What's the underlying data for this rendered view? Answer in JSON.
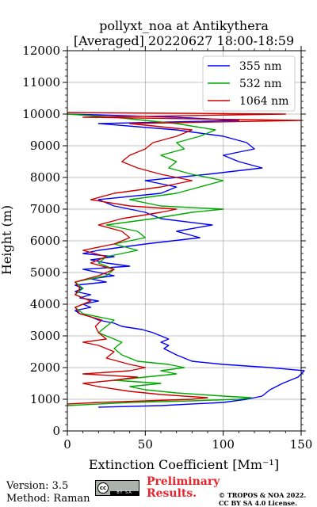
{
  "chart_data": {
    "type": "line",
    "title": "pollyxt_noa at Antikythera",
    "subtitle": "[Averaged] 20220627 18:00-18:59",
    "xlabel": "Extinction Coefficient [Mm⁻¹]",
    "ylabel": "Height (m)",
    "xlim": [
      0,
      150
    ],
    "ylim": [
      0,
      12000
    ],
    "x_ticks": [
      "0",
      "50",
      "100",
      "150"
    ],
    "y_ticks": [
      "0",
      "1000",
      "2000",
      "3000",
      "4000",
      "5000",
      "6000",
      "7000",
      "8000",
      "9000",
      "10000",
      "11000",
      "12000"
    ],
    "grid": true,
    "legend_position": "top-right",
    "series": [
      {
        "name": "355 nm",
        "color": "#0000ff",
        "points": [
          [
            20,
            750
          ],
          [
            60,
            800
          ],
          [
            100,
            900
          ],
          [
            115,
            1000
          ],
          [
            125,
            1100
          ],
          [
            130,
            1300
          ],
          [
            138,
            1500
          ],
          [
            148,
            1700
          ],
          [
            152,
            1900
          ],
          [
            130,
            2000
          ],
          [
            100,
            2100
          ],
          [
            80,
            2200
          ],
          [
            70,
            2400
          ],
          [
            62,
            2600
          ],
          [
            65,
            2700
          ],
          [
            60,
            2800
          ],
          [
            65,
            2900
          ],
          [
            60,
            3000
          ],
          [
            55,
            3100
          ],
          [
            48,
            3200
          ],
          [
            35,
            3300
          ],
          [
            30,
            3400
          ],
          [
            20,
            3500
          ],
          [
            15,
            3600
          ],
          [
            8,
            3700
          ],
          [
            5,
            3800
          ],
          [
            15,
            3900
          ],
          [
            10,
            4000
          ],
          [
            20,
            4100
          ],
          [
            8,
            4200
          ],
          [
            15,
            4300
          ],
          [
            5,
            4400
          ],
          [
            10,
            4500
          ],
          [
            5,
            4600
          ],
          [
            25,
            4700
          ],
          [
            15,
            4800
          ],
          [
            30,
            4900
          ],
          [
            20,
            5000
          ],
          [
            10,
            5100
          ],
          [
            40,
            5200
          ],
          [
            25,
            5300
          ],
          [
            15,
            5400
          ],
          [
            30,
            5500
          ],
          [
            10,
            5600
          ],
          [
            20,
            5700
          ],
          [
            50,
            5900
          ],
          [
            85,
            6100
          ],
          [
            70,
            6300
          ],
          [
            93,
            6500
          ],
          [
            60,
            6700
          ],
          [
            50,
            6900
          ],
          [
            30,
            7100
          ],
          [
            20,
            7300
          ],
          [
            60,
            7500
          ],
          [
            70,
            7700
          ],
          [
            50,
            7900
          ],
          [
            90,
            8100
          ],
          [
            125,
            8300
          ],
          [
            110,
            8500
          ],
          [
            100,
            8700
          ],
          [
            120,
            8900
          ],
          [
            115,
            9100
          ],
          [
            100,
            9300
          ],
          [
            70,
            9500
          ],
          [
            20,
            9700
          ],
          [
            110,
            9800
          ],
          [
            70,
            9900
          ],
          [
            0,
            10000
          ]
        ]
      },
      {
        "name": "532 nm",
        "color": "#00aa00",
        "points": [
          [
            0,
            800
          ],
          [
            40,
            900
          ],
          [
            80,
            950
          ],
          [
            110,
            1000
          ],
          [
            118,
            1050
          ],
          [
            100,
            1100
          ],
          [
            70,
            1200
          ],
          [
            50,
            1300
          ],
          [
            40,
            1400
          ],
          [
            60,
            1500
          ],
          [
            30,
            1600
          ],
          [
            50,
            1700
          ],
          [
            70,
            1800
          ],
          [
            60,
            1900
          ],
          [
            75,
            2000
          ],
          [
            65,
            2100
          ],
          [
            45,
            2200
          ],
          [
            35,
            2400
          ],
          [
            30,
            2600
          ],
          [
            35,
            2800
          ],
          [
            30,
            2900
          ],
          [
            20,
            3100
          ],
          [
            25,
            3300
          ],
          [
            30,
            3500
          ],
          [
            10,
            3700
          ],
          [
            5,
            3900
          ],
          [
            15,
            4100
          ],
          [
            5,
            4300
          ],
          [
            10,
            4500
          ],
          [
            5,
            4700
          ],
          [
            25,
            4900
          ],
          [
            30,
            5100
          ],
          [
            20,
            5300
          ],
          [
            25,
            5500
          ],
          [
            45,
            5700
          ],
          [
            30,
            5900
          ],
          [
            50,
            6100
          ],
          [
            45,
            6300
          ],
          [
            25,
            6500
          ],
          [
            55,
            6700
          ],
          [
            80,
            6900
          ],
          [
            100,
            7000
          ],
          [
            60,
            7100
          ],
          [
            40,
            7300
          ],
          [
            70,
            7500
          ],
          [
            85,
            7700
          ],
          [
            100,
            7900
          ],
          [
            80,
            8100
          ],
          [
            65,
            8300
          ],
          [
            70,
            8500
          ],
          [
            60,
            8700
          ],
          [
            75,
            8900
          ],
          [
            70,
            9100
          ],
          [
            85,
            9300
          ],
          [
            95,
            9500
          ],
          [
            70,
            9700
          ],
          [
            30,
            9900
          ],
          [
            0,
            10000
          ]
        ]
      },
      {
        "name": "1064 nm",
        "color": "#d00000",
        "points": [
          [
            0,
            850
          ],
          [
            20,
            900
          ],
          [
            50,
            950
          ],
          [
            80,
            1000
          ],
          [
            90,
            1050
          ],
          [
            60,
            1150
          ],
          [
            40,
            1250
          ],
          [
            20,
            1400
          ],
          [
            10,
            1500
          ],
          [
            30,
            1600
          ],
          [
            45,
            1700
          ],
          [
            10,
            1800
          ],
          [
            40,
            1900
          ],
          [
            50,
            2000
          ],
          [
            40,
            2100
          ],
          [
            25,
            2300
          ],
          [
            30,
            2500
          ],
          [
            20,
            2700
          ],
          [
            10,
            2800
          ],
          [
            25,
            2900
          ],
          [
            20,
            3100
          ],
          [
            18,
            3300
          ],
          [
            22,
            3500
          ],
          [
            8,
            3700
          ],
          [
            5,
            3900
          ],
          [
            15,
            4100
          ],
          [
            5,
            4300
          ],
          [
            8,
            4500
          ],
          [
            5,
            4700
          ],
          [
            20,
            4900
          ],
          [
            30,
            5100
          ],
          [
            15,
            5300
          ],
          [
            25,
            5500
          ],
          [
            10,
            5700
          ],
          [
            30,
            5900
          ],
          [
            40,
            6100
          ],
          [
            35,
            6300
          ],
          [
            20,
            6500
          ],
          [
            35,
            6700
          ],
          [
            60,
            6900
          ],
          [
            70,
            7000
          ],
          [
            40,
            7100
          ],
          [
            15,
            7300
          ],
          [
            30,
            7500
          ],
          [
            60,
            7700
          ],
          [
            80,
            7900
          ],
          [
            60,
            8100
          ],
          [
            45,
            8300
          ],
          [
            35,
            8500
          ],
          [
            40,
            8700
          ],
          [
            50,
            8900
          ],
          [
            55,
            9100
          ],
          [
            70,
            9300
          ],
          [
            80,
            9500
          ],
          [
            40,
            9700
          ],
          [
            150,
            9800
          ],
          [
            10,
            9900
          ],
          [
            140,
            10000
          ],
          [
            0,
            10050
          ]
        ]
      }
    ]
  },
  "footer": {
    "version": "Version: 3.5",
    "method": "Method: Raman",
    "cc_badge_letters": "BY SA",
    "cc_badge_symbol": "cc",
    "preliminary": "Preliminary",
    "results": "Results.",
    "copyright_line1": "© TROPOS & NOA 2022.",
    "copyright_line2": "CC BY SA 4.0 License.",
    "preliminary_color": "#e8242b"
  }
}
